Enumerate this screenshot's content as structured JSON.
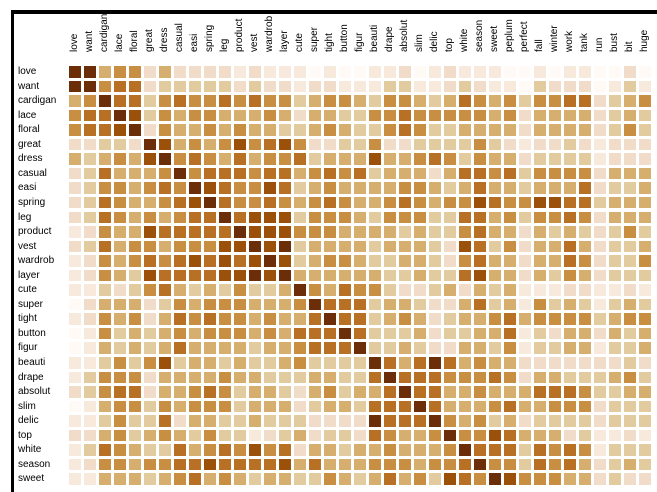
{
  "chart_data": {
    "type": "heatmap",
    "title": "",
    "columns": [
      "love",
      "want",
      "cardigan",
      "lace",
      "floral",
      "great",
      "dress",
      "casual",
      "easi",
      "spring",
      "leg",
      "product",
      "vest",
      "wardrob",
      "layer",
      "cute",
      "super",
      "tight",
      "button",
      "figur",
      "beauti",
      "drape",
      "absolut",
      "slim",
      "delic",
      "top",
      "white",
      "season",
      "sweet",
      "peplum",
      "perfect",
      "fall",
      "winter",
      "work",
      "tank",
      "run",
      "bust",
      "bit",
      "huge"
    ],
    "rows": [
      "love",
      "want",
      "cardigan",
      "lace",
      "floral",
      "great",
      "dress",
      "casual",
      "easi",
      "spring",
      "leg",
      "product",
      "vest",
      "wardrob",
      "layer",
      "cute",
      "super",
      "tight",
      "button",
      "figur",
      "beauti",
      "drape",
      "absolut",
      "slim",
      "delic",
      "top",
      "white",
      "season",
      "sweet"
    ],
    "value_scale": "relative intensity level 0 (lightest) to 8 (darkest), read from color",
    "palette": [
      "#fffaf5",
      "#f7eadd",
      "#f0dcc8",
      "#e2cb9f",
      "#d6af6e",
      "#c88f42",
      "#b87024",
      "#9c510a",
      "#6b2e08"
    ],
    "values": [
      [
        8,
        8,
        4,
        5,
        5,
        2,
        4,
        2,
        2,
        2,
        2,
        1,
        2,
        1,
        1,
        1,
        0,
        1,
        0,
        0,
        1,
        1,
        2,
        0,
        1,
        2,
        1,
        1,
        1,
        0,
        0,
        1,
        0,
        1,
        1,
        0,
        0,
        2,
        0
      ],
      [
        8,
        8,
        5,
        6,
        6,
        2,
        3,
        3,
        3,
        3,
        3,
        2,
        3,
        2,
        2,
        1,
        2,
        2,
        1,
        1,
        1,
        3,
        3,
        1,
        1,
        2,
        3,
        2,
        1,
        1,
        0,
        3,
        2,
        2,
        2,
        0,
        1,
        3,
        1
      ],
      [
        4,
        5,
        8,
        6,
        6,
        3,
        5,
        6,
        5,
        5,
        6,
        5,
        6,
        5,
        5,
        3,
        4,
        5,
        5,
        4,
        3,
        5,
        5,
        4,
        3,
        4,
        6,
        5,
        4,
        5,
        3,
        5,
        5,
        6,
        6,
        2,
        3,
        4,
        5
      ],
      [
        5,
        6,
        6,
        8,
        7,
        3,
        5,
        4,
        5,
        5,
        4,
        4,
        4,
        5,
        4,
        2,
        4,
        4,
        3,
        3,
        5,
        5,
        6,
        5,
        5,
        5,
        5,
        5,
        4,
        5,
        2,
        4,
        4,
        4,
        4,
        2,
        3,
        4,
        3
      ],
      [
        5,
        6,
        6,
        7,
        8,
        2,
        5,
        4,
        4,
        5,
        4,
        5,
        4,
        4,
        3,
        3,
        4,
        5,
        4,
        3,
        3,
        5,
        6,
        5,
        3,
        3,
        4,
        4,
        4,
        4,
        2,
        4,
        4,
        4,
        4,
        2,
        3,
        5,
        3
      ],
      [
        2,
        2,
        3,
        3,
        2,
        8,
        7,
        4,
        5,
        4,
        5,
        7,
        5,
        6,
        7,
        5,
        2,
        2,
        3,
        3,
        5,
        2,
        2,
        3,
        3,
        3,
        3,
        5,
        3,
        2,
        1,
        2,
        2,
        3,
        2,
        1,
        2,
        2,
        2
      ],
      [
        4,
        3,
        4,
        5,
        4,
        7,
        8,
        5,
        6,
        5,
        4,
        6,
        4,
        5,
        5,
        6,
        3,
        4,
        4,
        4,
        7,
        4,
        4,
        5,
        6,
        5,
        3,
        5,
        4,
        4,
        2,
        3,
        3,
        3,
        3,
        1,
        2,
        2,
        2
      ],
      [
        2,
        3,
        6,
        4,
        4,
        4,
        5,
        8,
        5,
        6,
        6,
        6,
        5,
        6,
        6,
        4,
        5,
        6,
        5,
        6,
        3,
        4,
        4,
        4,
        2,
        4,
        6,
        6,
        5,
        6,
        3,
        5,
        5,
        5,
        5,
        2,
        4,
        4,
        4
      ],
      [
        2,
        3,
        5,
        5,
        4,
        5,
        6,
        5,
        8,
        7,
        6,
        5,
        5,
        7,
        6,
        3,
        4,
        5,
        4,
        4,
        4,
        4,
        5,
        5,
        4,
        3,
        4,
        6,
        4,
        4,
        3,
        4,
        4,
        4,
        6,
        2,
        3,
        3,
        4
      ],
      [
        2,
        3,
        6,
        5,
        4,
        4,
        5,
        6,
        7,
        8,
        6,
        5,
        5,
        6,
        5,
        4,
        5,
        6,
        5,
        4,
        4,
        5,
        6,
        5,
        4,
        5,
        5,
        7,
        6,
        5,
        5,
        7,
        7,
        6,
        6,
        3,
        4,
        4,
        4
      ],
      [
        2,
        3,
        6,
        5,
        4,
        5,
        4,
        5,
        6,
        6,
        8,
        6,
        7,
        7,
        7,
        3,
        5,
        5,
        5,
        4,
        3,
        5,
        5,
        5,
        3,
        3,
        6,
        6,
        4,
        5,
        3,
        5,
        5,
        6,
        5,
        2,
        4,
        4,
        4
      ],
      [
        1,
        2,
        5,
        4,
        4,
        7,
        6,
        6,
        6,
        6,
        6,
        8,
        7,
        7,
        7,
        5,
        5,
        5,
        4,
        4,
        4,
        4,
        3,
        4,
        3,
        3,
        5,
        6,
        4,
        4,
        2,
        4,
        3,
        4,
        3,
        2,
        3,
        5,
        3
      ],
      [
        2,
        3,
        6,
        4,
        5,
        5,
        4,
        5,
        5,
        5,
        7,
        7,
        8,
        7,
        8,
        3,
        4,
        4,
        4,
        4,
        3,
        4,
        4,
        4,
        3,
        2,
        7,
        6,
        3,
        5,
        2,
        4,
        4,
        6,
        4,
        2,
        3,
        3,
        4
      ],
      [
        1,
        2,
        5,
        4,
        5,
        6,
        5,
        6,
        7,
        6,
        7,
        6,
        7,
        8,
        7,
        3,
        4,
        5,
        5,
        4,
        3,
        3,
        4,
        4,
        3,
        2,
        5,
        6,
        4,
        4,
        2,
        4,
        4,
        6,
        5,
        2,
        3,
        3,
        5
      ],
      [
        1,
        2,
        5,
        4,
        3,
        7,
        6,
        6,
        6,
        6,
        7,
        7,
        8,
        7,
        8,
        4,
        4,
        4,
        4,
        4,
        4,
        3,
        3,
        4,
        3,
        3,
        6,
        7,
        4,
        4,
        2,
        4,
        3,
        5,
        4,
        2,
        3,
        3,
        3
      ],
      [
        1,
        1,
        3,
        2,
        3,
        5,
        6,
        4,
        3,
        4,
        3,
        5,
        3,
        3,
        4,
        8,
        5,
        4,
        6,
        5,
        5,
        3,
        2,
        2,
        3,
        4,
        2,
        4,
        3,
        4,
        1,
        1,
        1,
        2,
        2,
        1,
        1,
        2,
        1
      ],
      [
        0,
        2,
        4,
        4,
        4,
        2,
        3,
        5,
        4,
        5,
        5,
        5,
        4,
        4,
        4,
        5,
        8,
        6,
        6,
        6,
        3,
        4,
        4,
        3,
        2,
        2,
        4,
        6,
        3,
        4,
        1,
        5,
        3,
        4,
        3,
        1,
        3,
        4,
        3
      ],
      [
        1,
        2,
        5,
        4,
        5,
        2,
        4,
        6,
        5,
        6,
        5,
        5,
        4,
        5,
        4,
        4,
        6,
        8,
        6,
        6,
        3,
        4,
        5,
        4,
        2,
        3,
        4,
        4,
        5,
        6,
        4,
        5,
        5,
        5,
        5,
        3,
        4,
        5,
        5
      ],
      [
        0,
        1,
        5,
        3,
        4,
        3,
        4,
        5,
        4,
        5,
        5,
        5,
        4,
        5,
        4,
        6,
        6,
        6,
        8,
        6,
        3,
        3,
        3,
        4,
        2,
        3,
        3,
        4,
        4,
        6,
        1,
        3,
        2,
        4,
        4,
        2,
        4,
        3,
        4
      ],
      [
        0,
        1,
        4,
        3,
        4,
        3,
        4,
        6,
        4,
        4,
        4,
        4,
        3,
        4,
        4,
        5,
        6,
        6,
        6,
        8,
        3,
        3,
        4,
        3,
        2,
        2,
        4,
        4,
        3,
        5,
        1,
        3,
        3,
        4,
        4,
        1,
        3,
        3,
        4
      ],
      [
        1,
        1,
        3,
        5,
        3,
        5,
        7,
        3,
        4,
        4,
        3,
        4,
        3,
        3,
        4,
        5,
        3,
        3,
        3,
        3,
        8,
        6,
        4,
        6,
        8,
        6,
        4,
        5,
        4,
        4,
        2,
        2,
        2,
        2,
        2,
        2,
        2,
        3,
        2
      ],
      [
        1,
        3,
        5,
        5,
        5,
        2,
        4,
        4,
        4,
        4,
        5,
        4,
        4,
        3,
        3,
        3,
        4,
        4,
        3,
        3,
        6,
        8,
        6,
        6,
        6,
        5,
        5,
        5,
        6,
        5,
        2,
        4,
        4,
        3,
        3,
        3,
        4,
        5,
        3
      ],
      [
        2,
        3,
        5,
        6,
        6,
        2,
        4,
        4,
        5,
        6,
        5,
        3,
        4,
        4,
        3,
        2,
        4,
        5,
        3,
        4,
        4,
        6,
        8,
        6,
        6,
        4,
        4,
        5,
        4,
        4,
        4,
        6,
        6,
        6,
        5,
        3,
        3,
        4,
        4
      ],
      [
        0,
        1,
        4,
        5,
        5,
        3,
        5,
        4,
        5,
        5,
        5,
        3,
        4,
        4,
        4,
        2,
        3,
        4,
        4,
        3,
        6,
        6,
        6,
        8,
        6,
        4,
        4,
        4,
        5,
        6,
        4,
        4,
        5,
        5,
        5,
        2,
        3,
        3,
        3
      ],
      [
        1,
        1,
        3,
        5,
        3,
        3,
        6,
        2,
        4,
        4,
        3,
        3,
        4,
        3,
        3,
        3,
        2,
        2,
        2,
        2,
        8,
        6,
        6,
        6,
        8,
        5,
        4,
        5,
        3,
        4,
        2,
        3,
        3,
        3,
        3,
        2,
        3,
        3,
        3
      ],
      [
        2,
        2,
        4,
        5,
        3,
        4,
        5,
        4,
        3,
        5,
        3,
        3,
        1,
        2,
        3,
        4,
        2,
        3,
        3,
        2,
        6,
        5,
        4,
        4,
        5,
        8,
        5,
        5,
        7,
        6,
        4,
        4,
        4,
        2,
        3,
        1,
        1,
        2,
        1
      ],
      [
        1,
        3,
        6,
        5,
        4,
        3,
        3,
        6,
        4,
        5,
        6,
        5,
        7,
        5,
        6,
        2,
        4,
        4,
        3,
        4,
        4,
        5,
        4,
        4,
        4,
        5,
        8,
        6,
        6,
        6,
        3,
        6,
        5,
        6,
        5,
        1,
        3,
        3,
        3
      ],
      [
        1,
        2,
        5,
        5,
        4,
        5,
        5,
        6,
        6,
        7,
        6,
        6,
        6,
        6,
        7,
        4,
        6,
        4,
        4,
        4,
        5,
        5,
        5,
        4,
        5,
        5,
        6,
        8,
        5,
        5,
        3,
        6,
        5,
        6,
        4,
        2,
        3,
        4,
        3
      ],
      [
        1,
        1,
        4,
        4,
        4,
        3,
        4,
        5,
        6,
        4,
        5,
        4,
        3,
        4,
        4,
        3,
        3,
        5,
        4,
        3,
        4,
        6,
        4,
        5,
        3,
        7,
        6,
        5,
        8,
        7,
        5,
        5,
        5,
        4,
        4,
        2,
        3,
        2,
        2
      ]
    ]
  }
}
